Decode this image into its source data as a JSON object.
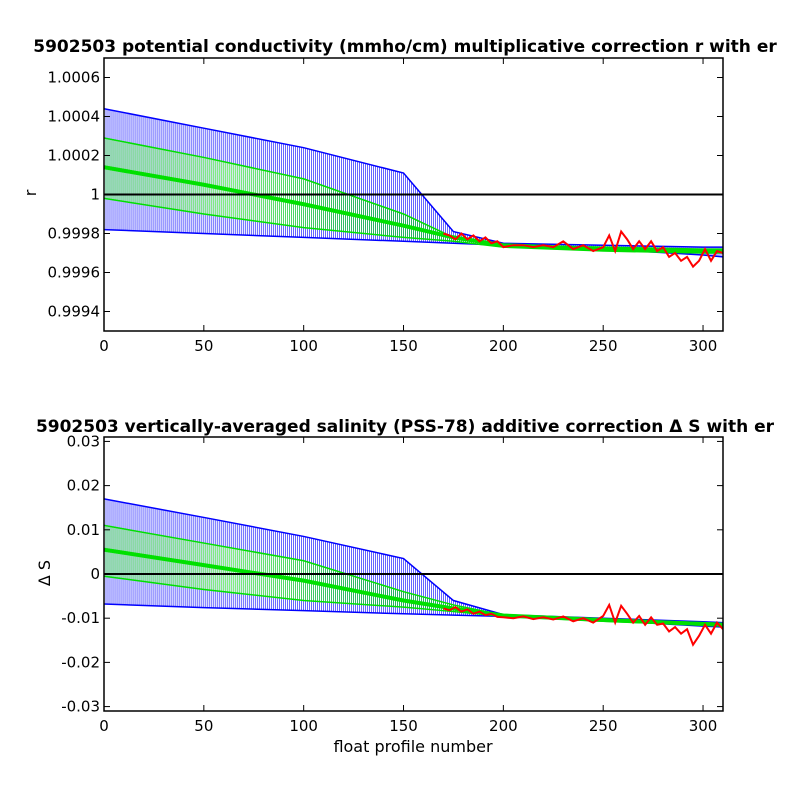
{
  "chart_data": [
    {
      "type": "line",
      "title": "5902503 potential conductivity (mmho/cm) multiplicative correction r with er",
      "xlabel": "",
      "ylabel": "r",
      "xlim": [
        0,
        310
      ],
      "ylim": [
        0.9993,
        1.0007
      ],
      "xticks": [
        0,
        50,
        100,
        150,
        200,
        250,
        300
      ],
      "xticklabels": [
        "0",
        "50",
        "100",
        "150",
        "200",
        "250",
        "300"
      ],
      "yticks": [
        0.9994,
        0.9996,
        0.9998,
        1.0,
        1.0002,
        1.0004,
        1.0006
      ],
      "yticklabels": [
        "0.9994",
        "0.9996",
        "0.9998",
        "1",
        "1.0002",
        "1.0004",
        "1.0006"
      ],
      "reference_line": 1.0,
      "error_band_2sigma": {
        "x": [
          0,
          50,
          100,
          150,
          175,
          200,
          250,
          300,
          310
        ],
        "upper": [
          1.00044,
          1.00034,
          1.00024,
          1.00011,
          0.99981,
          0.99975,
          0.99974,
          0.99973,
          0.99973
        ],
        "lower": [
          0.99982,
          0.9998,
          0.99978,
          0.99976,
          0.99975,
          0.99974,
          0.99972,
          0.99969,
          0.99968
        ]
      },
      "error_band_1sigma": {
        "x": [
          0,
          50,
          100,
          150,
          175,
          200,
          250,
          300,
          310
        ],
        "upper": [
          1.00029,
          1.00019,
          1.00008,
          0.9999,
          0.99978,
          0.99974,
          0.99973,
          0.99972,
          0.99972
        ],
        "lower": [
          0.99998,
          0.9999,
          0.99983,
          0.99978,
          0.99976,
          0.99973,
          0.99971,
          0.9997,
          0.9997
        ]
      },
      "series": [
        {
          "color": "#00e000",
          "x": [
            0,
            50,
            100,
            150,
            175,
            200,
            250,
            300,
            310
          ],
          "y": [
            1.00014,
            1.00005,
            0.99995,
            0.99984,
            0.99978,
            0.99974,
            0.99972,
            0.99971,
            0.99971
          ]
        },
        {
          "color": "#ff0000",
          "x": [
            170,
            173,
            176,
            179,
            182,
            185,
            188,
            191,
            194,
            197,
            200,
            205,
            210,
            215,
            220,
            225,
            230,
            235,
            240,
            245,
            250,
            253,
            256,
            259,
            262,
            265,
            268,
            271,
            274,
            277,
            280,
            283,
            286,
            289,
            292,
            295,
            298,
            301,
            304,
            307,
            310
          ],
          "y": [
            0.9998,
            0.99979,
            0.99977,
            0.9998,
            0.99977,
            0.99979,
            0.99976,
            0.99978,
            0.99975,
            0.99976,
            0.99973,
            0.99974,
            0.99974,
            0.99973,
            0.99974,
            0.99973,
            0.99976,
            0.99972,
            0.99974,
            0.99971,
            0.99973,
            0.99979,
            0.99971,
            0.99981,
            0.99977,
            0.99972,
            0.99976,
            0.99972,
            0.99976,
            0.99971,
            0.99973,
            0.99968,
            0.9997,
            0.99966,
            0.99968,
            0.99963,
            0.99966,
            0.99972,
            0.99966,
            0.99971,
            0.9997
          ]
        }
      ],
      "colors": {
        "band_2sigma": "#0000ff",
        "band_1sigma": "#00e000",
        "fit": "#00e000",
        "data": "#ff0000",
        "zero_line": "#000000"
      }
    },
    {
      "type": "line",
      "title": "5902503 vertically-averaged salinity (PSS-78) additive correction Δ S with er",
      "xlabel": "float profile number",
      "ylabel": "Δ S",
      "xlim": [
        0,
        310
      ],
      "ylim": [
        -0.031,
        0.031
      ],
      "xticks": [
        0,
        50,
        100,
        150,
        200,
        250,
        300
      ],
      "xticklabels": [
        "0",
        "50",
        "100",
        "150",
        "200",
        "250",
        "300"
      ],
      "yticks": [
        -0.03,
        -0.02,
        -0.01,
        0,
        0.01,
        0.02,
        0.03
      ],
      "yticklabels": [
        "-0.03",
        "-0.02",
        "-0.01",
        "0",
        "0.01",
        "0.02",
        "0.03"
      ],
      "reference_line": 0,
      "error_band_2sigma": {
        "x": [
          0,
          50,
          100,
          150,
          175,
          200,
          250,
          300,
          310
        ],
        "upper": [
          0.017,
          0.0128,
          0.0085,
          0.0035,
          -0.006,
          -0.0092,
          -0.01,
          -0.0108,
          -0.011
        ],
        "lower": [
          -0.0068,
          -0.0076,
          -0.0083,
          -0.009,
          -0.0093,
          -0.0096,
          -0.0105,
          -0.0118,
          -0.012
        ]
      },
      "error_band_1sigma": {
        "x": [
          0,
          50,
          100,
          150,
          175,
          200,
          250,
          300,
          310
        ],
        "upper": [
          0.011,
          0.007,
          0.003,
          -0.004,
          -0.007,
          -0.0093,
          -0.0102,
          -0.011,
          -0.0112
        ],
        "lower": [
          -0.0005,
          -0.0035,
          -0.006,
          -0.0075,
          -0.0085,
          -0.0096,
          -0.0107,
          -0.0116,
          -0.0118
        ]
      },
      "series": [
        {
          "color": "#00e000",
          "x": [
            0,
            50,
            100,
            150,
            175,
            200,
            250,
            300,
            310
          ],
          "y": [
            0.0055,
            0.002,
            -0.0015,
            -0.006,
            -0.0078,
            -0.0094,
            -0.0104,
            -0.0113,
            -0.0115
          ]
        },
        {
          "color": "#ff0000",
          "x": [
            170,
            173,
            176,
            179,
            182,
            185,
            188,
            191,
            194,
            197,
            200,
            205,
            210,
            215,
            220,
            225,
            230,
            235,
            240,
            245,
            250,
            253,
            256,
            259,
            262,
            265,
            268,
            271,
            274,
            277,
            280,
            283,
            286,
            289,
            292,
            295,
            298,
            301,
            304,
            307,
            310
          ],
          "y": [
            -0.0078,
            -0.0082,
            -0.0075,
            -0.0085,
            -0.008,
            -0.009,
            -0.0085,
            -0.0093,
            -0.009,
            -0.0097,
            -0.0098,
            -0.01,
            -0.0096,
            -0.0102,
            -0.0098,
            -0.0103,
            -0.0096,
            -0.0107,
            -0.01,
            -0.011,
            -0.0095,
            -0.007,
            -0.011,
            -0.0072,
            -0.009,
            -0.011,
            -0.0095,
            -0.0115,
            -0.0098,
            -0.0115,
            -0.0112,
            -0.013,
            -0.012,
            -0.0135,
            -0.0125,
            -0.016,
            -0.014,
            -0.0115,
            -0.0135,
            -0.011,
            -0.0125
          ]
        }
      ],
      "colors": {
        "band_2sigma": "#0000ff",
        "band_1sigma": "#00e000",
        "fit": "#00e000",
        "data": "#ff0000",
        "zero_line": "#000000"
      }
    }
  ]
}
